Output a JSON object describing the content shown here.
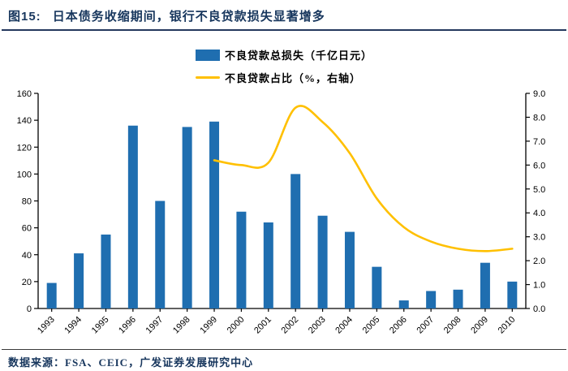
{
  "title": {
    "prefix": "图15:",
    "text": "日本债务收缩期间，银行不良贷款损失显著增多"
  },
  "legend": {
    "bar_label": "不良贷款总损失（千亿日元）",
    "line_label": "不良贷款占比（%，右轴）"
  },
  "footer": {
    "source": "数据来源：FSA、CEIC，广发证券发展研究中心"
  },
  "colors": {
    "bar": "#1F6EB0",
    "line": "#FFC000",
    "title": "#17365D",
    "axis": "#000000"
  },
  "chart_data": {
    "type": "bar",
    "title": "日本债务收缩期间，银行不良贷款损失显著增多",
    "categories": [
      "1993",
      "1994",
      "1995",
      "1996",
      "1997",
      "1998",
      "1999",
      "2000",
      "2001",
      "2002",
      "2003",
      "2004",
      "2005",
      "2006",
      "2007",
      "2008",
      "2009",
      "2010"
    ],
    "series": [
      {
        "name": "不良贷款总损失（千亿日元）",
        "type": "bar",
        "axis": "left",
        "color": "#1F6EB0",
        "values": [
          19,
          41,
          55,
          136,
          80,
          135,
          139,
          72,
          64,
          100,
          69,
          57,
          31,
          6,
          13,
          14,
          34,
          20
        ]
      },
      {
        "name": "不良贷款占比（%，右轴）",
        "type": "line",
        "axis": "right",
        "color": "#FFC000",
        "values": [
          null,
          null,
          null,
          null,
          null,
          null,
          6.2,
          6.0,
          6.1,
          8.4,
          7.8,
          6.5,
          4.6,
          3.4,
          2.8,
          2.5,
          2.4,
          2.5
        ]
      }
    ],
    "left_axis": {
      "min": 0,
      "max": 160,
      "step": 20
    },
    "right_axis": {
      "min": 0,
      "max": 9,
      "step": 1,
      "decimals": 1
    },
    "grid": false,
    "legend_position": "top"
  }
}
